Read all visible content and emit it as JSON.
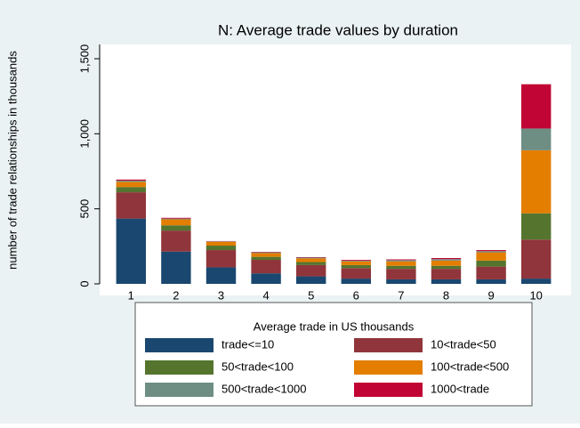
{
  "chart_data": {
    "type": "stacked_bar",
    "title": "N: Average trade values by duration",
    "y_label": "number of trade relationships in thousands",
    "legend_title": "Average trade in US thousands",
    "categories": [
      "1",
      "2",
      "3",
      "4",
      "5",
      "6",
      "7",
      "8",
      "9",
      "10"
    ],
    "series": [
      {
        "name": "trade<=10",
        "color": "#1a476f",
        "values": [
          435,
          215,
          110,
          70,
          50,
          35,
          30,
          30,
          30,
          35
        ]
      },
      {
        "name": "10<trade<50",
        "color": "#90353b",
        "values": [
          175,
          140,
          115,
          90,
          75,
          70,
          70,
          70,
          85,
          260
        ]
      },
      {
        "name": "50<trade<100",
        "color": "#55752f",
        "values": [
          35,
          35,
          30,
          20,
          20,
          20,
          20,
          20,
          40,
          175
        ]
      },
      {
        "name": "100<trade<500",
        "color": "#e37e00",
        "values": [
          35,
          40,
          25,
          25,
          25,
          25,
          30,
          35,
          55,
          420
        ]
      },
      {
        "name": "500<trade<1000",
        "color": "#6e8e84",
        "values": [
          8,
          5,
          3,
          5,
          5,
          5,
          8,
          10,
          8,
          145
        ]
      },
      {
        "name": "1000<trade",
        "color": "#c10534",
        "values": [
          7,
          5,
          2,
          3,
          3,
          5,
          5,
          7,
          7,
          295
        ]
      }
    ],
    "ylim": [
      0,
      1500
    ],
    "yticks": [
      0,
      500,
      {
        "value": 1000,
        "label": "1,000"
      },
      {
        "value": 1500,
        "label": "1,500"
      }
    ],
    "grid": false,
    "legend_position": "bottom"
  }
}
